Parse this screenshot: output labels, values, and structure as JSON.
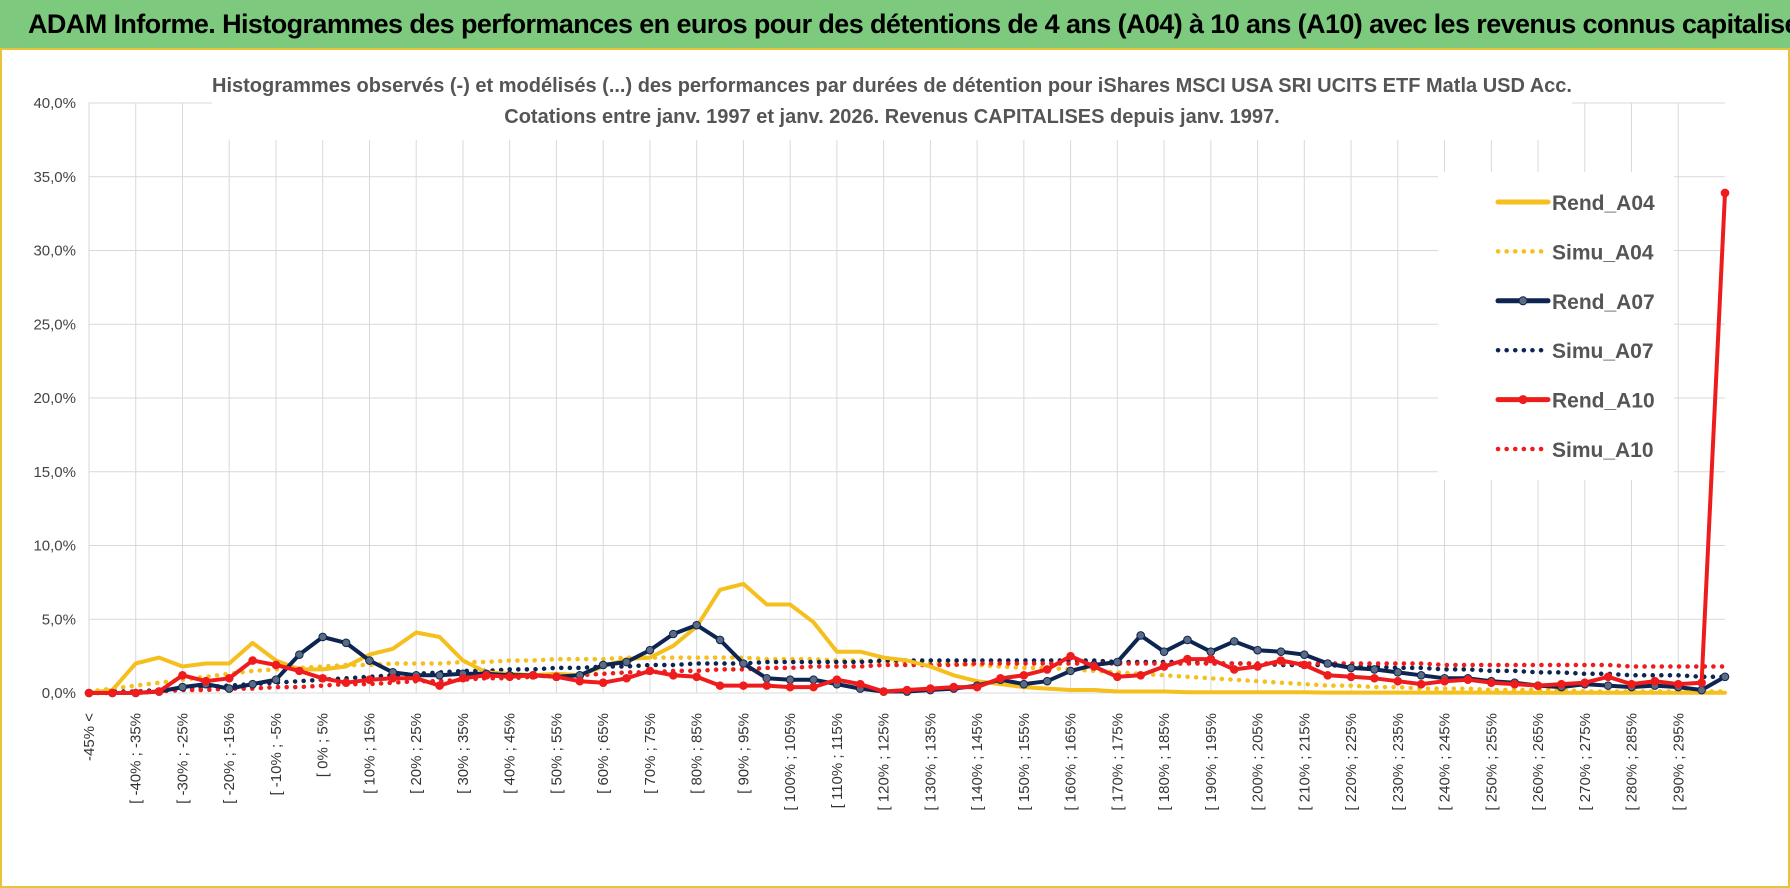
{
  "banner": {
    "title": "ADAM Informe. Histogrammes des performances en euros pour des détentions de 4 ans (A04) à 10 ans (A10) avec les revenus connus capitalisés"
  },
  "colors": {
    "A04": "#f5bf1e",
    "A07": "#0e2552",
    "A07_marker": "#5b6b82",
    "A10": "#ee1c1c",
    "grid": "#d9d9d9",
    "banner": "#7dc97d"
  },
  "chart_data": {
    "type": "line",
    "title": [
      "Histogrammes observés (-) et modélisés (...) des performances par durées de détention pour iShares MSCI USA SRI UCITS ETF Matla USD Acc.",
      "Cotations entre janv. 1997 et janv. 2026. Revenus CAPITALISES depuis janv. 1997."
    ],
    "ylim": [
      0,
      40
    ],
    "yticks": [
      "0,0%",
      "5,0%",
      "10,0%",
      "15,0%",
      "20,0%",
      "25,0%",
      "30,0%",
      "35,0%",
      "40,0%"
    ],
    "grid": true,
    "legend_position": "top-right",
    "xtick_labels": [
      "-45% <",
      "[ -40% ; -35%",
      "[ -30% ; -25%",
      "[ -20% ; -15%",
      "[ -10% ; -5%",
      "[ 0% ; 5%",
      "[ 10% ; 15%",
      "[ 20% ; 25%",
      "[ 30% ; 35%",
      "[ 40% ; 45%",
      "[ 50% ; 55%",
      "[ 60% ; 65%",
      "[ 70% ; 75%",
      "[ 80% ; 85%",
      "[ 90% ; 95%",
      "[ 100% ; 105%",
      "[ 110% ; 115%",
      "[ 120% ; 125%",
      "[ 130% ; 135%",
      "[ 140% ; 145%",
      "[ 150% ; 155%",
      "[ 160% ; 165%",
      "[ 170% ; 175%",
      "[ 180% ; 185%",
      "[ 190% ; 195%",
      "[ 200% ; 205%",
      "[ 210% ; 215%",
      "[ 220% ; 225%",
      "[ 230% ; 235%",
      "[ 240% ; 245%",
      "[ 250% ; 255%",
      "[ 260% ; 265%",
      "[ 270% ; 275%",
      "[ 280% ; 285%",
      "[ 290% ; 295%"
    ],
    "series": [
      {
        "name": "Rend_A04",
        "style": "solid",
        "marker": false,
        "values": [
          0,
          0.2,
          2.0,
          2.4,
          1.8,
          2.0,
          2.0,
          3.4,
          2.2,
          1.6,
          1.6,
          1.8,
          2.6,
          3.0,
          4.1,
          3.8,
          2.2,
          1.4,
          1.3,
          1.2,
          1.3,
          1.2,
          1.8,
          2.3,
          2.4,
          3.2,
          4.5,
          7.0,
          7.4,
          6.0,
          6.0,
          4.8,
          2.8,
          2.8,
          2.4,
          2.2,
          1.8,
          1.2,
          0.8,
          0.6,
          0.4,
          0.3,
          0.2,
          0.2,
          0.1,
          0.1,
          0.1,
          0.05,
          0.05,
          0.05,
          0.05,
          0.05,
          0.05,
          0.03,
          0.03,
          0.03,
          0.03,
          0.03,
          0.03,
          0.03,
          0.03,
          0.02,
          0.02,
          0.02,
          0.02,
          0.02,
          0.02,
          0.02,
          0.02,
          0.02,
          0.02
        ]
      },
      {
        "name": "Simu_A04",
        "style": "dotted",
        "marker": false,
        "values": [
          0.1,
          0.3,
          0.5,
          0.7,
          0.9,
          1.1,
          1.3,
          1.5,
          1.6,
          1.7,
          1.8,
          1.9,
          1.9,
          2.0,
          2.0,
          2.0,
          2.1,
          2.1,
          2.2,
          2.2,
          2.3,
          2.3,
          2.3,
          2.4,
          2.4,
          2.4,
          2.4,
          2.4,
          2.4,
          2.3,
          2.3,
          2.3,
          2.2,
          2.2,
          2.1,
          2.1,
          2.0,
          2.0,
          1.9,
          1.8,
          1.7,
          1.7,
          1.6,
          1.5,
          1.4,
          1.3,
          1.2,
          1.1,
          1.0,
          0.9,
          0.8,
          0.7,
          0.6,
          0.5,
          0.5,
          0.4,
          0.4,
          0.3,
          0.3,
          0.3,
          0.2,
          0.2,
          0.2,
          0.2,
          0.1,
          0.1,
          0.1,
          0.1,
          0.1,
          0.1,
          0.1
        ]
      },
      {
        "name": "Rend_A07",
        "style": "solid",
        "marker": true,
        "values": [
          0,
          0,
          0,
          0.1,
          0.4,
          0.6,
          0.3,
          0.6,
          0.9,
          2.6,
          3.8,
          3.4,
          2.2,
          1.4,
          1.2,
          1.2,
          1.3,
          1.3,
          1.2,
          1.2,
          1.1,
          1.2,
          1.9,
          2.1,
          2.9,
          4.0,
          4.6,
          3.6,
          2.0,
          1.0,
          0.9,
          0.9,
          0.6,
          0.3,
          0.1,
          0.1,
          0.2,
          0.3,
          0.5,
          0.9,
          0.6,
          0.8,
          1.5,
          1.9,
          2.1,
          3.9,
          2.8,
          3.6,
          2.8,
          3.5,
          2.9,
          2.8,
          2.6,
          2.0,
          1.7,
          1.6,
          1.4,
          1.2,
          1.0,
          1.0,
          0.8,
          0.7,
          0.5,
          0.4,
          0.6,
          0.5,
          0.4,
          0.5,
          0.4,
          0.2,
          1.1
        ]
      },
      {
        "name": "Simu_A07",
        "style": "dotted",
        "marker": false,
        "values": [
          0,
          0.1,
          0.1,
          0.2,
          0.3,
          0.4,
          0.5,
          0.6,
          0.7,
          0.8,
          0.9,
          1.0,
          1.1,
          1.2,
          1.3,
          1.4,
          1.5,
          1.5,
          1.6,
          1.6,
          1.7,
          1.7,
          1.8,
          1.8,
          1.9,
          1.9,
          2.0,
          2.0,
          2.0,
          2.1,
          2.1,
          2.1,
          2.1,
          2.1,
          2.2,
          2.2,
          2.2,
          2.2,
          2.2,
          2.2,
          2.2,
          2.2,
          2.2,
          2.2,
          2.1,
          2.1,
          2.1,
          2.1,
          2.0,
          2.0,
          2.0,
          1.9,
          1.9,
          1.9,
          1.8,
          1.8,
          1.7,
          1.7,
          1.6,
          1.6,
          1.5,
          1.5,
          1.4,
          1.4,
          1.3,
          1.3,
          1.2,
          1.2,
          1.2,
          1.1,
          1.1
        ]
      },
      {
        "name": "Rend_A10",
        "style": "solid",
        "marker": true,
        "values": [
          0,
          0,
          0,
          0.1,
          1.2,
          0.8,
          1.0,
          2.2,
          1.9,
          1.5,
          1.0,
          0.7,
          0.9,
          1.0,
          1.0,
          0.5,
          1.0,
          1.2,
          1.1,
          1.2,
          1.1,
          0.8,
          0.7,
          1.0,
          1.5,
          1.2,
          1.1,
          0.5,
          0.5,
          0.5,
          0.4,
          0.4,
          0.9,
          0.6,
          0.1,
          0.2,
          0.3,
          0.4,
          0.4,
          1.0,
          1.2,
          1.6,
          2.5,
          1.8,
          1.1,
          1.2,
          1.8,
          2.3,
          2.3,
          1.6,
          1.8,
          2.2,
          1.9,
          1.2,
          1.1,
          1.0,
          0.8,
          0.6,
          0.8,
          0.9,
          0.7,
          0.6,
          0.5,
          0.6,
          0.7,
          1.1,
          0.6,
          0.8,
          0.6,
          0.7,
          33.9
        ]
      },
      {
        "name": "Simu_A10",
        "style": "dotted",
        "marker": false,
        "values": [
          0,
          0,
          0.1,
          0.1,
          0.2,
          0.2,
          0.3,
          0.3,
          0.4,
          0.4,
          0.5,
          0.6,
          0.6,
          0.7,
          0.8,
          0.8,
          0.9,
          1.0,
          1.0,
          1.1,
          1.2,
          1.2,
          1.3,
          1.4,
          1.4,
          1.5,
          1.5,
          1.6,
          1.6,
          1.7,
          1.7,
          1.8,
          1.8,
          1.8,
          1.9,
          1.9,
          1.9,
          1.9,
          2.0,
          2.0,
          2.0,
          2.0,
          2.0,
          2.0,
          2.0,
          2.0,
          2.0,
          2.0,
          2.0,
          2.0,
          2.0,
          2.0,
          2.0,
          2.0,
          2.0,
          2.0,
          2.0,
          2.0,
          1.9,
          1.9,
          1.9,
          1.9,
          1.9,
          1.9,
          1.9,
          1.9,
          1.8,
          1.8,
          1.8,
          1.8,
          1.8
        ]
      }
    ]
  }
}
